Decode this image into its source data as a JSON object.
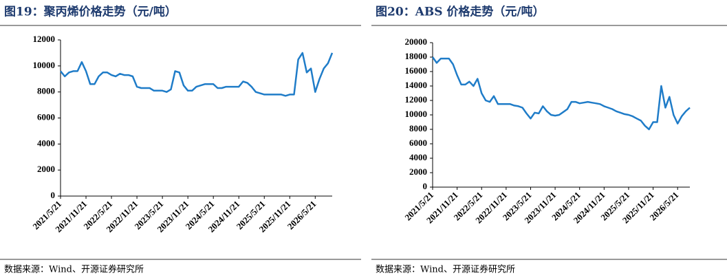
{
  "chart_data": [
    {
      "type": "line",
      "title": "图19：聚丙烯价格走势（元/吨）",
      "source": "数据来源：Wind、开源证券研究所",
      "color": "#1f7cc8",
      "x": [
        "2021/5/21",
        "2021/6/21",
        "2021/7/21",
        "2021/8/21",
        "2021/9/21",
        "2021/10/21",
        "2021/11/21",
        "2021/12/21",
        "2022/1/21",
        "2022/2/21",
        "2022/3/21",
        "2022/4/21",
        "2022/5/21",
        "2022/6/21",
        "2022/7/21",
        "2022/8/21",
        "2022/9/21",
        "2022/10/21",
        "2022/11/21",
        "2022/12/21",
        "2023/1/21",
        "2023/2/21",
        "2023/3/21",
        "2023/4/21",
        "2023/5/21",
        "2023/6/21",
        "2023/7/21",
        "2023/8/21",
        "2023/9/21",
        "2023/10/21",
        "2023/11/21",
        "2023/12/21",
        "2024/1/21",
        "2024/2/21",
        "2024/3/21",
        "2024/4/21",
        "2024/5/21",
        "2024/6/21",
        "2024/7/21",
        "2024/8/21",
        "2024/9/21",
        "2024/10/21",
        "2024/11/21",
        "2024/12/21",
        "2025/1/21",
        "2025/2/21",
        "2025/3/21",
        "2025/4/21",
        "2025/5/21",
        "2025/6/21",
        "2025/7/21",
        "2025/8/21",
        "2025/9/21",
        "2025/10/21",
        "2025/11/21",
        "2025/12/21",
        "2026/1/21",
        "2026/2/21",
        "2026/3/21",
        "2026/4/21",
        "2026/5/21",
        "2026/6/21",
        "2026/7/21",
        "2026/8/21",
        "2026/9/21"
      ],
      "values": [
        9600,
        9200,
        9500,
        9600,
        9600,
        10300,
        9600,
        8600,
        8600,
        9200,
        9500,
        9500,
        9300,
        9200,
        9400,
        9300,
        9300,
        9200,
        8400,
        8300,
        8300,
        8300,
        8100,
        8100,
        8100,
        8000,
        8200,
        9600,
        9500,
        8500,
        8100,
        8100,
        8400,
        8500,
        8600,
        8600,
        8600,
        8300,
        8300,
        8400,
        8400,
        8400,
        8400,
        8800,
        8700,
        8400,
        8000,
        7900,
        7800,
        7800,
        7800,
        7800,
        7800,
        7700,
        7800,
        7800,
        10500,
        11000,
        9500,
        9800,
        8000,
        9000,
        9800,
        10200,
        11000
      ],
      "xlim": [
        "2021/5/21",
        "2026/9/21"
      ],
      "xticks": [
        "2021/5/21",
        "2021/11/21",
        "2022/5/21",
        "2022/11/21",
        "2023/5/21",
        "2023/11/21",
        "2024/5/21",
        "2024/11/21",
        "2025/5/21",
        "2025/11/21",
        "2026/5/21"
      ],
      "ylim": [
        0,
        12000
      ],
      "yticks": [
        0,
        2000,
        4000,
        6000,
        8000,
        10000,
        12000
      ]
    },
    {
      "type": "line",
      "title": "图20：ABS 价格走势（元/吨）",
      "source": "数据来源：Wind、开源证券研究所",
      "color": "#1f7cc8",
      "x": [
        "2021/5/21",
        "2021/6/21",
        "2021/7/21",
        "2021/8/21",
        "2021/9/21",
        "2021/10/21",
        "2021/11/21",
        "2021/12/21",
        "2022/1/21",
        "2022/2/21",
        "2022/3/21",
        "2022/4/21",
        "2022/5/21",
        "2022/6/21",
        "2022/7/21",
        "2022/8/21",
        "2022/9/21",
        "2022/10/21",
        "2022/11/21",
        "2022/12/21",
        "2023/1/21",
        "2023/2/21",
        "2023/3/21",
        "2023/4/21",
        "2023/5/21",
        "2023/6/21",
        "2023/7/21",
        "2023/8/21",
        "2023/9/21",
        "2023/10/21",
        "2023/11/21",
        "2023/12/21",
        "2024/1/21",
        "2024/2/21",
        "2024/3/21",
        "2024/4/21",
        "2024/5/21",
        "2024/6/21",
        "2024/7/21",
        "2024/8/21",
        "2024/9/21",
        "2024/10/21",
        "2024/11/21",
        "2024/12/21",
        "2025/1/21",
        "2025/2/21",
        "2025/3/21",
        "2025/4/21",
        "2025/5/21",
        "2025/6/21",
        "2025/7/21",
        "2025/8/21",
        "2025/9/21",
        "2025/10/21",
        "2025/11/21",
        "2025/12/21",
        "2026/1/21",
        "2026/2/21",
        "2026/3/21",
        "2026/4/21",
        "2026/5/21",
        "2026/6/21",
        "2026/7/21",
        "2026/8/21"
      ],
      "values": [
        18000,
        17200,
        17800,
        17800,
        17800,
        17000,
        15500,
        14200,
        14200,
        14600,
        14000,
        15000,
        13000,
        12000,
        11800,
        12600,
        11500,
        11500,
        11500,
        11500,
        11300,
        11200,
        11000,
        10200,
        9500,
        10300,
        10200,
        11200,
        10500,
        10000,
        9900,
        10000,
        10400,
        10800,
        11800,
        11800,
        11600,
        11700,
        11800,
        11700,
        11600,
        11500,
        11200,
        11000,
        10800,
        10500,
        10300,
        10100,
        10000,
        9800,
        9500,
        9200,
        8500,
        8000,
        9000,
        9000,
        14000,
        11000,
        12500,
        10000,
        8800,
        9800,
        10500,
        11000
      ],
      "xlim": [
        "2021/5/21",
        "2026/8/21"
      ],
      "xticks": [
        "2021/5/21",
        "2021/11/21",
        "2022/5/21",
        "2022/11/21",
        "2023/5/21",
        "2023/11/21",
        "2024/5/21",
        "2024/11/21",
        "2025/5/21",
        "2025/11/21",
        "2026/5/21"
      ],
      "ylim": [
        0,
        20000
      ],
      "yticks": [
        0,
        2000,
        4000,
        6000,
        8000,
        10000,
        12000,
        14000,
        16000,
        18000,
        20000
      ]
    }
  ]
}
